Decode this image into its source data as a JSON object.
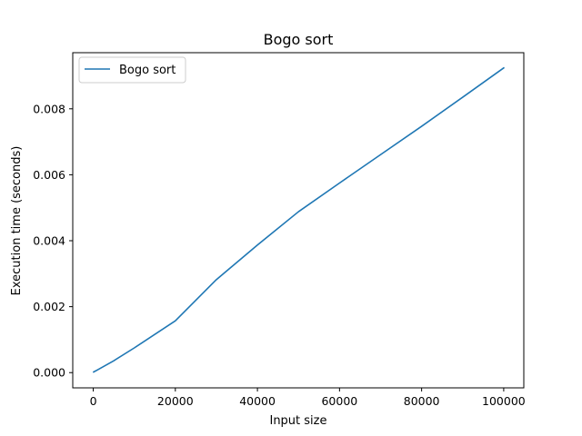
{
  "chart_data": {
    "type": "line",
    "title": "Bogo sort",
    "xlabel": "Input size",
    "ylabel": "Execution time (seconds)",
    "xlim": [
      -4995,
      104895
    ],
    "ylim": [
      -0.000462,
      0.009702
    ],
    "x_ticks": [
      0,
      20000,
      40000,
      60000,
      80000,
      100000
    ],
    "x_tick_labels": [
      "0",
      "20000",
      "40000",
      "60000",
      "80000",
      "100000"
    ],
    "y_ticks": [
      0.0,
      0.002,
      0.004,
      0.006,
      0.008
    ],
    "y_tick_labels": [
      "0.000",
      "0.002",
      "0.004",
      "0.006",
      "0.008"
    ],
    "grid": false,
    "legend_position": "upper-left",
    "series": [
      {
        "name": "Bogo sort",
        "color": "#1f77b4",
        "x": [
          100,
          1000,
          5000,
          10000,
          20000,
          30000,
          40000,
          50000,
          60000,
          70000,
          80000,
          90000,
          100000
        ],
        "y": [
          2e-05,
          8e-05,
          0.00036,
          0.00075,
          0.00157,
          0.00282,
          0.00387,
          0.00488,
          0.00575,
          0.00661,
          0.00747,
          0.00835,
          0.00924
        ]
      }
    ]
  }
}
